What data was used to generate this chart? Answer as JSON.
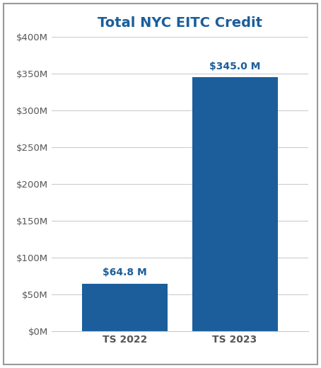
{
  "title": "Total NYC EITC Credit",
  "categories": [
    "TS 2022",
    "TS 2023"
  ],
  "values": [
    64.8,
    345.0
  ],
  "bar_color": "#1B5E9B",
  "title_color": "#1B5E9B",
  "label_color": "#1B5E9B",
  "bar_labels": [
    "$64.8 M",
    "$345.0 M"
  ],
  "ylim": [
    0,
    400
  ],
  "yticks": [
    0,
    50,
    100,
    150,
    200,
    250,
    300,
    350,
    400
  ],
  "ytick_labels": [
    "$0M",
    "$50M",
    "$100M",
    "$150M",
    "$200M",
    "$250M",
    "$300M",
    "$350M",
    "$400M"
  ],
  "label_fontsize": 10,
  "title_fontsize": 14,
  "tick_fontsize": 9.5,
  "xlabel_fontsize": 10,
  "background_color": "#ffffff",
  "border_color": "#aaaaaa",
  "grid_color": "#cccccc",
  "bar_width": 0.35
}
